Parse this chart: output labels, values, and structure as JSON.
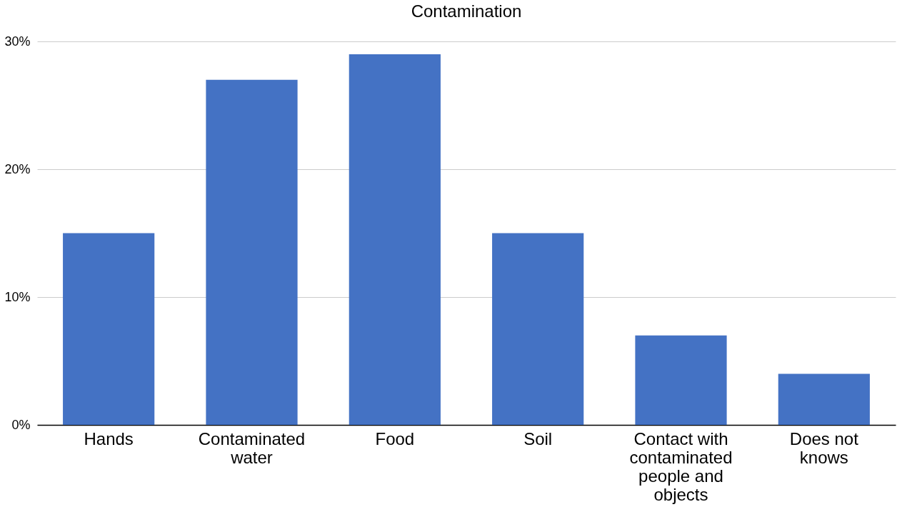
{
  "chart_data": {
    "type": "bar",
    "title": "Contamination",
    "categories": [
      "Hands",
      "Contaminated water",
      "Food",
      "Soil",
      "Contact with contaminated people and objects",
      "Does not knows"
    ],
    "values": [
      15,
      27,
      29,
      15,
      7,
      4
    ],
    "color": "#4472c4",
    "ylim": [
      0,
      30
    ],
    "yticks": [
      {
        "value": 0,
        "label": "0%"
      },
      {
        "value": 10,
        "label": "10%"
      },
      {
        "value": 20,
        "label": "20%"
      },
      {
        "value": 30,
        "label": "30%"
      }
    ],
    "grid": "y"
  }
}
